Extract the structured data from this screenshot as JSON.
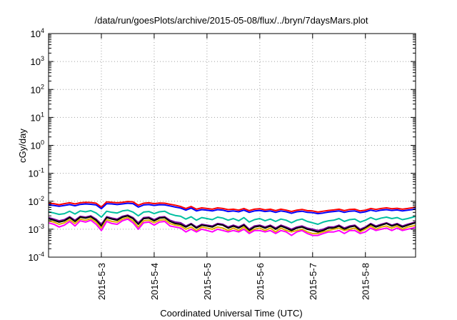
{
  "chart_data": {
    "type": "line",
    "title": "/data/run/goesPlots/archive/2015-05-08/flux/../bryn/7daysMars.plot",
    "xlabel": "Coordinated Universal Time (UTC)",
    "ylabel": "cGy/day",
    "x_ticks": [
      "2015-5-3",
      "2015-5-4",
      "2015-5-5",
      "2015-5-6",
      "2015-5-7",
      "2015-5-8"
    ],
    "x_range_days": [
      2.0,
      8.95
    ],
    "y_scale": "log",
    "ylim": [
      0.0001,
      10000
    ],
    "y_ticks": [
      {
        "value": 0.0001,
        "mantissa": "10",
        "exp": "-4"
      },
      {
        "value": 0.001,
        "mantissa": "10",
        "exp": "-3"
      },
      {
        "value": 0.01,
        "mantissa": "10",
        "exp": "-2"
      },
      {
        "value": 0.1,
        "mantissa": "10",
        "exp": "-1"
      },
      {
        "value": 1,
        "mantissa": "10",
        "exp": "0"
      },
      {
        "value": 10,
        "mantissa": "10",
        "exp": "1"
      },
      {
        "value": 100,
        "mantissa": "10",
        "exp": "2"
      },
      {
        "value": 1000,
        "mantissa": "10",
        "exp": "3"
      },
      {
        "value": 10000,
        "mantissa": "10",
        "exp": "4"
      }
    ],
    "grid": true,
    "x": [
      2.0,
      2.1,
      2.2,
      2.3,
      2.4,
      2.5,
      2.6,
      2.7,
      2.8,
      2.9,
      3.0,
      3.1,
      3.2,
      3.3,
      3.4,
      3.5,
      3.6,
      3.7,
      3.8,
      3.9,
      4.0,
      4.1,
      4.2,
      4.3,
      4.4,
      4.5,
      4.6,
      4.7,
      4.8,
      4.9,
      5.0,
      5.1,
      5.2,
      5.3,
      5.4,
      5.5,
      5.6,
      5.7,
      5.8,
      5.9,
      6.0,
      6.1,
      6.2,
      6.3,
      6.4,
      6.5,
      6.6,
      6.7,
      6.8,
      6.9,
      7.0,
      7.1,
      7.2,
      7.3,
      7.4,
      7.5,
      7.6,
      7.7,
      7.8,
      7.9,
      8.0,
      8.1,
      8.2,
      8.3,
      8.4,
      8.5,
      8.6,
      8.7,
      8.8,
      8.9,
      8.95
    ],
    "series": [
      {
        "color": "#ff0000",
        "values": [
          0.0085,
          0.0082,
          0.0075,
          0.0082,
          0.0088,
          0.008,
          0.0088,
          0.0092,
          0.009,
          0.0085,
          0.0062,
          0.0095,
          0.0092,
          0.0088,
          0.0092,
          0.0098,
          0.0095,
          0.0072,
          0.0085,
          0.0088,
          0.0082,
          0.0086,
          0.0085,
          0.0078,
          0.0072,
          0.0065,
          0.0055,
          0.0065,
          0.0052,
          0.0058,
          0.0055,
          0.0052,
          0.0058,
          0.0055,
          0.005,
          0.0052,
          0.0048,
          0.0055,
          0.0046,
          0.0052,
          0.0054,
          0.0049,
          0.0052,
          0.0046,
          0.0052,
          0.0048,
          0.0043,
          0.0048,
          0.0051,
          0.0046,
          0.0045,
          0.0041,
          0.0044,
          0.0047,
          0.0049,
          0.0052,
          0.0046,
          0.0051,
          0.0052,
          0.0045,
          0.0048,
          0.0055,
          0.0051,
          0.0055,
          0.0058,
          0.0054,
          0.0056,
          0.0052,
          0.0055,
          0.0059,
          0.0062
        ]
      },
      {
        "color": "#0000ff",
        "values": [
          0.0074,
          0.0071,
          0.0066,
          0.0071,
          0.0076,
          0.0069,
          0.0077,
          0.008,
          0.0078,
          0.0074,
          0.0054,
          0.0082,
          0.008,
          0.0076,
          0.008,
          0.0085,
          0.0082,
          0.0062,
          0.0074,
          0.0076,
          0.0071,
          0.0075,
          0.0074,
          0.0068,
          0.0062,
          0.0057,
          0.0048,
          0.0057,
          0.0045,
          0.005,
          0.0048,
          0.0045,
          0.005,
          0.0048,
          0.0043,
          0.0045,
          0.0042,
          0.0048,
          0.004,
          0.0045,
          0.0047,
          0.0043,
          0.0045,
          0.004,
          0.0045,
          0.0042,
          0.0037,
          0.0042,
          0.0044,
          0.004,
          0.0039,
          0.0036,
          0.0038,
          0.0041,
          0.0043,
          0.0045,
          0.004,
          0.0044,
          0.0045,
          0.0039,
          0.0042,
          0.0048,
          0.0044,
          0.0048,
          0.005,
          0.0047,
          0.0049,
          0.0045,
          0.0048,
          0.0051,
          0.0054
        ]
      },
      {
        "color": "#00bfa0",
        "values": [
          0.0042,
          0.0038,
          0.0034,
          0.0036,
          0.0044,
          0.0035,
          0.0045,
          0.0042,
          0.0046,
          0.0038,
          0.0027,
          0.0044,
          0.004,
          0.0038,
          0.0045,
          0.0048,
          0.0041,
          0.003,
          0.0041,
          0.0043,
          0.0036,
          0.0042,
          0.0044,
          0.0035,
          0.0031,
          0.0029,
          0.0023,
          0.0028,
          0.0021,
          0.0026,
          0.0024,
          0.0022,
          0.0027,
          0.0025,
          0.0021,
          0.0024,
          0.002,
          0.0026,
          0.0018,
          0.0022,
          0.0024,
          0.002,
          0.0023,
          0.0019,
          0.0023,
          0.0021,
          0.0017,
          0.0021,
          0.0023,
          0.0019,
          0.0017,
          0.0015,
          0.0018,
          0.002,
          0.0021,
          0.0024,
          0.0019,
          0.0022,
          0.0023,
          0.0018,
          0.0021,
          0.0026,
          0.0022,
          0.0025,
          0.0027,
          0.0024,
          0.0026,
          0.0022,
          0.0024,
          0.0027,
          0.0029
        ]
      },
      {
        "color": "#7a00a0",
        "values": [
          0.0026,
          0.0023,
          0.002,
          0.0022,
          0.0028,
          0.0021,
          0.0029,
          0.0027,
          0.003,
          0.0023,
          0.0015,
          0.0028,
          0.0025,
          0.0023,
          0.0029,
          0.0032,
          0.0026,
          0.0017,
          0.0026,
          0.0027,
          0.0022,
          0.0027,
          0.0028,
          0.0021,
          0.0018,
          0.0017,
          0.0013,
          0.0016,
          0.0012,
          0.0015,
          0.0014,
          0.0013,
          0.0016,
          0.0015,
          0.0012,
          0.0014,
          0.0012,
          0.0015,
          0.001,
          0.0013,
          0.0014,
          0.0012,
          0.0014,
          0.0011,
          0.0014,
          0.0012,
          0.001,
          0.0012,
          0.0013,
          0.0011,
          0.001,
          0.0009,
          0.001,
          0.0012,
          0.0012,
          0.0014,
          0.0011,
          0.0013,
          0.0014,
          0.001,
          0.0012,
          0.0016,
          0.0013,
          0.0015,
          0.0017,
          0.0014,
          0.0016,
          0.0013,
          0.0015,
          0.0017,
          0.0018
        ]
      },
      {
        "color": "#000000",
        "values": [
          0.0024,
          0.0021,
          0.0018,
          0.002,
          0.0026,
          0.0019,
          0.0027,
          0.0025,
          0.0028,
          0.0021,
          0.0013,
          0.0026,
          0.0023,
          0.0021,
          0.0027,
          0.003,
          0.0024,
          0.0015,
          0.0024,
          0.0025,
          0.002,
          0.0025,
          0.0026,
          0.0019,
          0.0016,
          0.0015,
          0.0012,
          0.0015,
          0.0011,
          0.0014,
          0.0013,
          0.0012,
          0.0015,
          0.0014,
          0.0011,
          0.0013,
          0.0011,
          0.0014,
          0.0009,
          0.0012,
          0.0013,
          0.0011,
          0.0013,
          0.001,
          0.0013,
          0.0011,
          0.0009,
          0.0011,
          0.0012,
          0.001,
          0.0009,
          0.0008,
          0.0009,
          0.0011,
          0.0011,
          0.0013,
          0.001,
          0.0012,
          0.0013,
          0.0009,
          0.0011,
          0.0015,
          0.0012,
          0.0014,
          0.0016,
          0.0013,
          0.0015,
          0.0012,
          0.0014,
          0.0016,
          0.0017
        ]
      },
      {
        "color": "#e0b000",
        "values": [
          0.002,
          0.0018,
          0.0015,
          0.0017,
          0.0022,
          0.0016,
          0.0023,
          0.0021,
          0.0024,
          0.0018,
          0.0011,
          0.0022,
          0.0019,
          0.0018,
          0.0023,
          0.0026,
          0.002,
          0.0012,
          0.002,
          0.0021,
          0.0017,
          0.0021,
          0.0022,
          0.0016,
          0.0014,
          0.0013,
          0.001,
          0.0012,
          0.0009,
          0.0012,
          0.0011,
          0.001,
          0.0012,
          0.0011,
          0.0009,
          0.0011,
          0.0009,
          0.0012,
          0.0008,
          0.001,
          0.0011,
          0.0009,
          0.0011,
          0.0008,
          0.0011,
          0.0009,
          0.0008,
          0.0009,
          0.001,
          0.0008,
          0.0007,
          0.0007,
          0.0008,
          0.0009,
          0.001,
          0.0011,
          0.0009,
          0.001,
          0.0011,
          0.0008,
          0.001,
          0.0013,
          0.001,
          0.0012,
          0.0013,
          0.0011,
          0.0013,
          0.001,
          0.0012,
          0.0013,
          0.0014
        ]
      },
      {
        "color": "#ff00ff",
        "values": [
          0.0017,
          0.0015,
          0.0012,
          0.0014,
          0.0019,
          0.0013,
          0.002,
          0.0018,
          0.0021,
          0.0015,
          0.0009,
          0.0019,
          0.0016,
          0.0015,
          0.002,
          0.0023,
          0.0017,
          0.001,
          0.0017,
          0.0018,
          0.0014,
          0.0018,
          0.0019,
          0.0013,
          0.0012,
          0.0011,
          0.0008,
          0.001,
          0.0008,
          0.001,
          0.0009,
          0.0008,
          0.001,
          0.0009,
          0.0008,
          0.0009,
          0.0008,
          0.001,
          0.0007,
          0.0009,
          0.0009,
          0.0008,
          0.0009,
          0.0007,
          0.0009,
          0.0008,
          0.0006,
          0.0008,
          0.0009,
          0.0007,
          0.0006,
          0.0006,
          0.0007,
          0.0008,
          0.0008,
          0.0009,
          0.0007,
          0.0009,
          0.0009,
          0.0007,
          0.0008,
          0.0011,
          0.0009,
          0.001,
          0.0011,
          0.0009,
          0.0011,
          0.0009,
          0.001,
          0.0011,
          0.0012
        ]
      }
    ]
  }
}
